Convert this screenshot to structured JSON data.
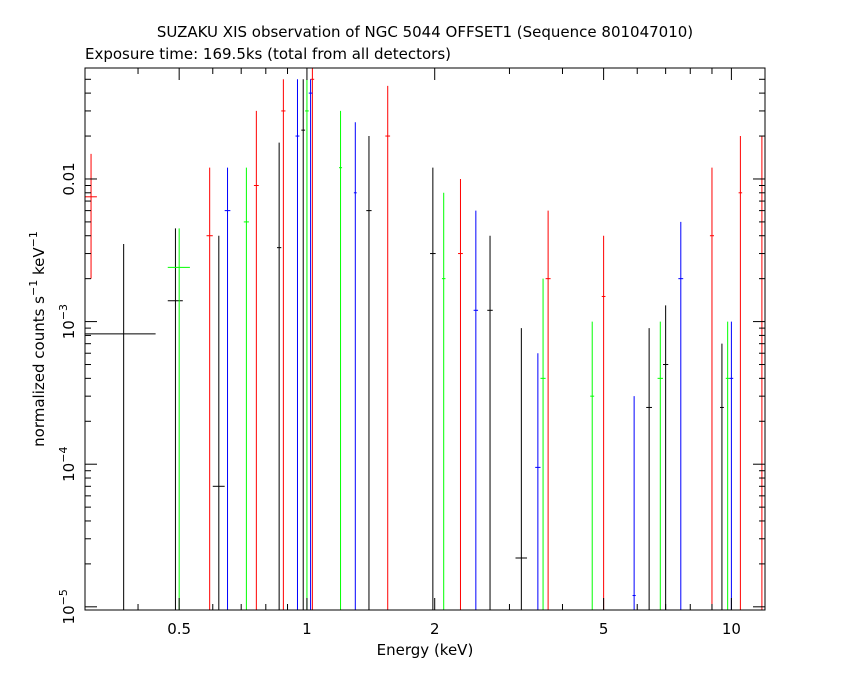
{
  "chart_data": {
    "type": "scatter",
    "title": "SUZAKU XIS observation of NGC 5044 OFFSET1 (Sequence 801047010)",
    "subtitle": "Exposure time: 169.5ks (total from all detectors)",
    "xlabel": "Energy (keV)",
    "ylabel": {
      "base": "normalized counts s",
      "exp1": "−1",
      "mid": " keV",
      "exp2": "−1"
    },
    "x_scale": "log",
    "y_scale": "log",
    "xlim": [
      0.3,
      12
    ],
    "ylim": [
      9.5e-06,
      0.06
    ],
    "x_ticks": [
      {
        "value": 0.5,
        "label": "0.5"
      },
      {
        "value": 1,
        "label": "1"
      },
      {
        "value": 2,
        "label": "2"
      },
      {
        "value": 5,
        "label": "5"
      },
      {
        "value": 10,
        "label": "10"
      }
    ],
    "y_ticks": [
      {
        "value": 1e-05,
        "mant": "10",
        "exp": "−5"
      },
      {
        "value": 0.0001,
        "mant": "10",
        "exp": "−4"
      },
      {
        "value": 0.001,
        "mant": "10",
        "exp": "−3"
      },
      {
        "value": 0.01,
        "plain": "0.01"
      }
    ],
    "grid": false,
    "series": [
      {
        "color": "#000000",
        "points": [
          {
            "x": 0.37,
            "y": 0.00082,
            "xerr": [
              0.3,
              0.44
            ],
            "yerr": [
              9.5e-06,
              0.0035
            ]
          },
          {
            "x": 0.49,
            "y": 0.0014,
            "xerr": [
              0.47,
              0.51
            ],
            "yerr": [
              9.5e-06,
              0.0045
            ]
          },
          {
            "x": 0.62,
            "y": 7e-05,
            "xerr": [
              0.6,
              0.64
            ],
            "yerr": [
              9.5e-06,
              0.004
            ]
          },
          {
            "x": 0.86,
            "y": 0.0033,
            "xerr": [
              0.85,
              0.87
            ],
            "yerr": [
              9.5e-06,
              0.018
            ]
          },
          {
            "x": 0.98,
            "y": 0.022,
            "xerr": [
              0.97,
              0.99
            ],
            "yerr": [
              9.5e-06,
              0.05
            ]
          },
          {
            "x": 1.4,
            "y": 0.006,
            "xerr": [
              1.38,
              1.42
            ],
            "yerr": [
              9.5e-06,
              0.02
            ]
          },
          {
            "x": 1.98,
            "y": 0.003,
            "xerr": [
              1.95,
              2.01
            ],
            "yerr": [
              9.5e-06,
              0.012
            ]
          },
          {
            "x": 2.7,
            "y": 0.0012,
            "xerr": [
              2.66,
              2.74
            ],
            "yerr": [
              9.5e-06,
              0.004
            ]
          },
          {
            "x": 3.2,
            "y": 2.2e-05,
            "xerr": [
              3.1,
              3.3
            ],
            "yerr": [
              9.5e-06,
              0.0009
            ]
          },
          {
            "x": 6.4,
            "y": 0.00025,
            "xerr": [
              6.3,
              6.5
            ],
            "yerr": [
              9.5e-06,
              0.0009
            ]
          },
          {
            "x": 7.0,
            "y": 0.0005,
            "xerr": [
              6.9,
              7.1
            ],
            "yerr": [
              9.5e-06,
              0.0013
            ]
          },
          {
            "x": 9.5,
            "y": 0.00025,
            "xerr": [
              9.4,
              9.6
            ],
            "yerr": [
              9.5e-06,
              0.0007
            ]
          }
        ]
      },
      {
        "color": "#ff0000",
        "points": [
          {
            "x": 0.31,
            "y": 0.0075,
            "xerr": [
              0.3,
              0.32
            ],
            "yerr": [
              0.002,
              0.015
            ]
          },
          {
            "x": 0.59,
            "y": 0.004,
            "xerr": [
              0.58,
              0.6
            ],
            "yerr": [
              9.5e-06,
              0.012
            ]
          },
          {
            "x": 0.76,
            "y": 0.009,
            "xerr": [
              0.75,
              0.77
            ],
            "yerr": [
              9.5e-06,
              0.03
            ]
          },
          {
            "x": 0.88,
            "y": 0.03,
            "xerr": [
              0.87,
              0.89
            ],
            "yerr": [
              9.5e-06,
              0.05
            ]
          },
          {
            "x": 1.03,
            "y": 0.05,
            "xerr": [
              1.02,
              1.04
            ],
            "yerr": [
              9.5e-06,
              0.06
            ]
          },
          {
            "x": 1.55,
            "y": 0.02,
            "xerr": [
              1.53,
              1.57
            ],
            "yerr": [
              9.5e-06,
              0.045
            ]
          },
          {
            "x": 2.3,
            "y": 0.003,
            "xerr": [
              2.27,
              2.33
            ],
            "yerr": [
              9.5e-06,
              0.01
            ]
          },
          {
            "x": 3.7,
            "y": 0.002,
            "xerr": [
              3.65,
              3.75
            ],
            "yerr": [
              9.5e-06,
              0.006
            ]
          },
          {
            "x": 5.0,
            "y": 0.0015,
            "xerr": [
              4.95,
              5.05
            ],
            "yerr": [
              9.5e-06,
              0.004
            ]
          },
          {
            "x": 9.0,
            "y": 0.004,
            "xerr": [
              8.9,
              9.1
            ],
            "yerr": [
              9.5e-06,
              0.012
            ]
          },
          {
            "x": 10.5,
            "y": 0.008,
            "xerr": [
              10.4,
              10.6
            ],
            "yerr": [
              9.5e-06,
              0.02
            ]
          },
          {
            "x": 11.8,
            "y": 0.01,
            "xerr": [
              11.7,
              11.9
            ],
            "yerr": [
              9.5e-06,
              0.02
            ]
          }
        ]
      },
      {
        "color": "#00ff00",
        "points": [
          {
            "x": 0.5,
            "y": 0.0024,
            "xerr": [
              0.47,
              0.53
            ],
            "yerr": [
              9.5e-06,
              0.0045
            ]
          },
          {
            "x": 0.72,
            "y": 0.005,
            "xerr": [
              0.71,
              0.73
            ],
            "yerr": [
              9.5e-06,
              0.012
            ]
          },
          {
            "x": 1.0,
            "y": 0.03,
            "xerr": [
              0.99,
              1.01
            ],
            "yerr": [
              9.5e-06,
              0.05
            ]
          },
          {
            "x": 1.2,
            "y": 0.012,
            "xerr": [
              1.19,
              1.21
            ],
            "yerr": [
              9.5e-06,
              0.03
            ]
          },
          {
            "x": 2.1,
            "y": 0.002,
            "xerr": [
              2.08,
              2.12
            ],
            "yerr": [
              9.5e-06,
              0.008
            ]
          },
          {
            "x": 3.6,
            "y": 0.0004,
            "xerr": [
              3.55,
              3.65
            ],
            "yerr": [
              9.5e-06,
              0.002
            ]
          },
          {
            "x": 4.7,
            "y": 0.0003,
            "xerr": [
              4.65,
              4.75
            ],
            "yerr": [
              9.5e-06,
              0.001
            ]
          },
          {
            "x": 6.8,
            "y": 0.0004,
            "xerr": [
              6.7,
              6.9
            ],
            "yerr": [
              9.5e-06,
              0.001
            ]
          },
          {
            "x": 9.8,
            "y": 0.0004,
            "xerr": [
              9.7,
              9.9
            ],
            "yerr": [
              9.5e-06,
              0.001
            ]
          }
        ]
      },
      {
        "color": "#0000ff",
        "points": [
          {
            "x": 0.65,
            "y": 0.006,
            "xerr": [
              0.64,
              0.66
            ],
            "yerr": [
              9.5e-06,
              0.012
            ]
          },
          {
            "x": 0.95,
            "y": 0.02,
            "xerr": [
              0.94,
              0.96
            ],
            "yerr": [
              9.5e-06,
              0.05
            ]
          },
          {
            "x": 1.02,
            "y": 0.04,
            "xerr": [
              1.01,
              1.03
            ],
            "yerr": [
              9.5e-06,
              0.05
            ]
          },
          {
            "x": 1.3,
            "y": 0.008,
            "xerr": [
              1.29,
              1.31
            ],
            "yerr": [
              9.5e-06,
              0.025
            ]
          },
          {
            "x": 2.5,
            "y": 0.0012,
            "xerr": [
              2.47,
              2.53
            ],
            "yerr": [
              9.5e-06,
              0.006
            ]
          },
          {
            "x": 3.5,
            "y": 9.5e-05,
            "xerr": [
              3.45,
              3.55
            ],
            "yerr": [
              9.5e-06,
              0.0006
            ]
          },
          {
            "x": 5.9,
            "y": 1.2e-05,
            "xerr": [
              5.85,
              5.95
            ],
            "yerr": [
              9.5e-06,
              0.0003
            ]
          },
          {
            "x": 7.6,
            "y": 0.002,
            "xerr": [
              7.5,
              7.7
            ],
            "yerr": [
              9.5e-06,
              0.005
            ]
          },
          {
            "x": 10.0,
            "y": 0.0004,
            "xerr": [
              9.9,
              10.1
            ],
            "yerr": [
              9.5e-06,
              0.001
            ]
          }
        ]
      }
    ]
  }
}
